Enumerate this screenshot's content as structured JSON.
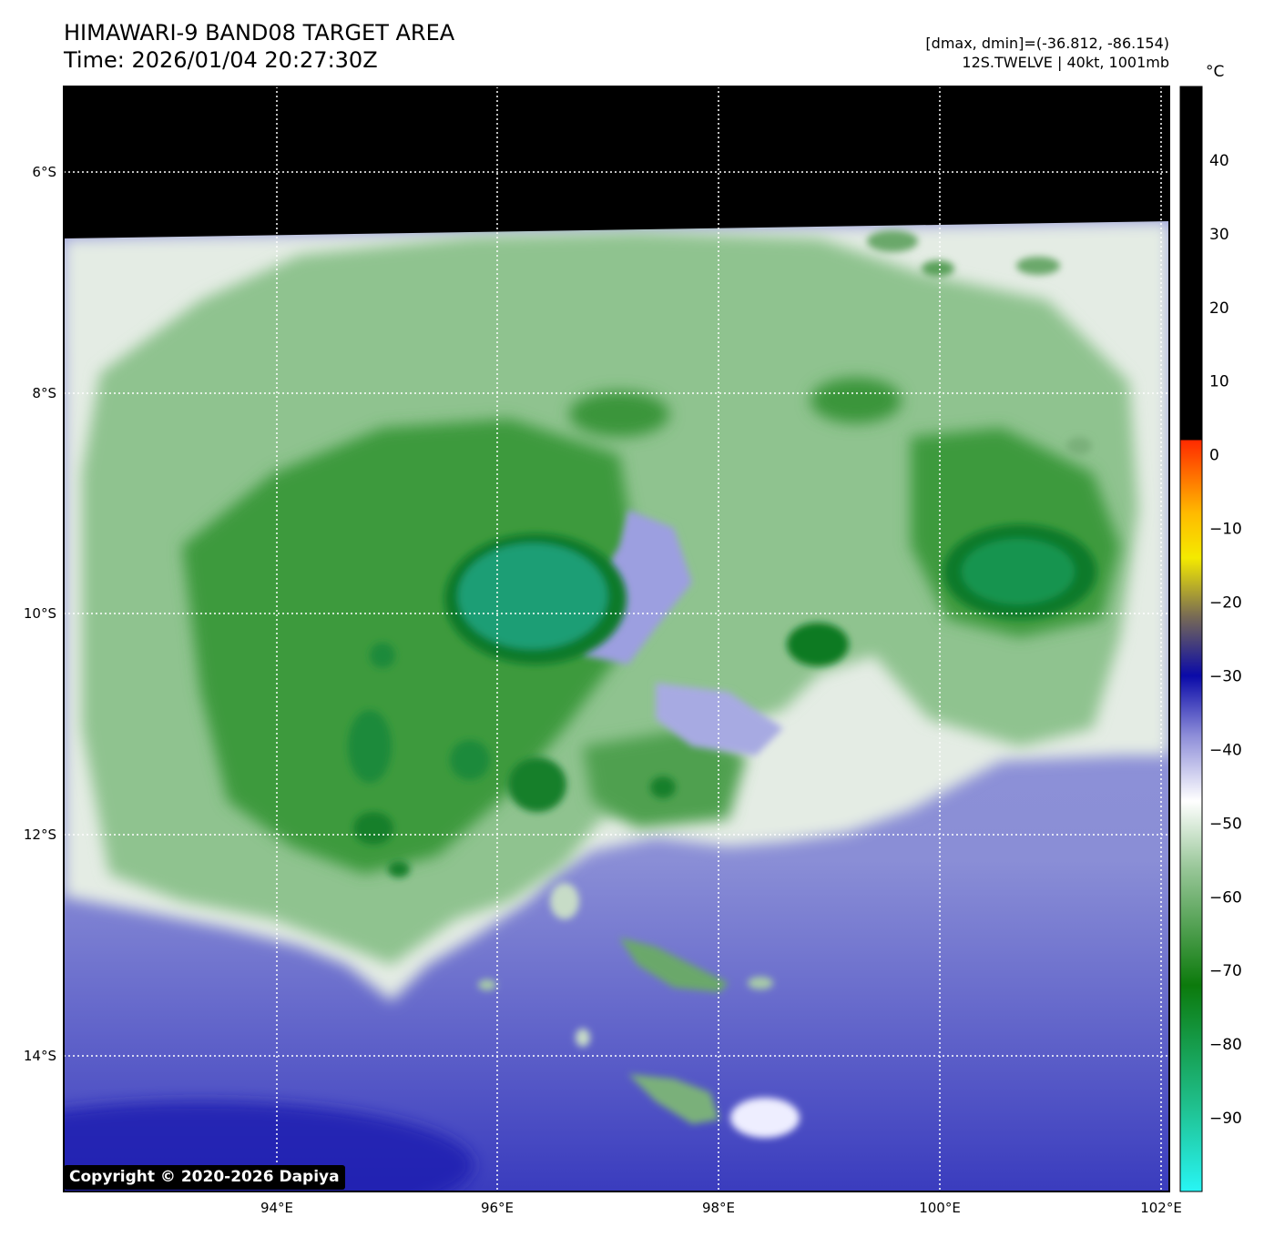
{
  "header": {
    "title_line1": "HIMAWARI-9 BAND08 TARGET AREA",
    "title_line2": "Time: 2026/01/04 20:27:30Z",
    "info_line1": "[dmax, dmin]=(-36.812, -86.154)",
    "info_line2": "12S.TWELVE | 40kt, 1001mb"
  },
  "map": {
    "lon_ticks": [
      "94°E",
      "96°E",
      "98°E",
      "100°E",
      "102°E"
    ],
    "lat_ticks": [
      "6°S",
      "8°S",
      "10°S",
      "12°S",
      "14°S"
    ],
    "no_data_color": "#000000",
    "background_color": "#8a8ed6"
  },
  "colorbar": {
    "unit": "°C",
    "tick_labels": [
      "40",
      "30",
      "20",
      "10",
      "0",
      "−10",
      "−20",
      "−30",
      "−40",
      "−50",
      "−60",
      "−70",
      "−80",
      "−90"
    ],
    "range": [
      -100,
      50
    ],
    "stops": [
      {
        "t": 50,
        "color": "#000000"
      },
      {
        "t": 2,
        "color": "#000000"
      },
      {
        "t": 2,
        "color": "#ff2a00"
      },
      {
        "t": -8,
        "color": "#ffbb00"
      },
      {
        "t": -14,
        "color": "#f4ea00"
      },
      {
        "t": -22,
        "color": "#776a55"
      },
      {
        "t": -30,
        "color": "#0a0aa8"
      },
      {
        "t": -38,
        "color": "#8c8cd8"
      },
      {
        "t": -47,
        "color": "#ffffff"
      },
      {
        "t": -56,
        "color": "#99c799"
      },
      {
        "t": -72,
        "color": "#0c7a0c"
      },
      {
        "t": -88,
        "color": "#1fbe8a"
      },
      {
        "t": -100,
        "color": "#28f5f5"
      }
    ]
  },
  "copyright": "Copyright © 2020-2026 Dapiya"
}
